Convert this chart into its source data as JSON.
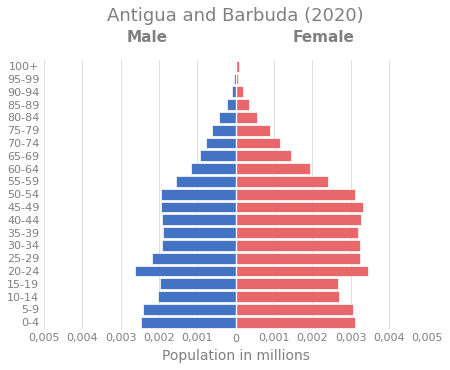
{
  "title": "Antigua and Barbuda (2020)",
  "xlabel": "Population in millions",
  "male_label": "Male",
  "female_label": "Female",
  "age_groups": [
    "0-4",
    "5-9",
    "10-14",
    "15-19",
    "20-24",
    "25-29",
    "30-34",
    "35-39",
    "40-44",
    "45-49",
    "50-54",
    "55-59",
    "60-64",
    "65-69",
    "70-74",
    "75-79",
    "80-84",
    "85-89",
    "90-94",
    "95-99",
    "100+"
  ],
  "male_values": [
    0.00248,
    0.00243,
    0.00202,
    0.00197,
    0.00262,
    0.00218,
    0.00192,
    0.00189,
    0.00192,
    0.00194,
    0.00195,
    0.00155,
    0.00118,
    0.00093,
    0.00078,
    0.00063,
    0.00044,
    0.00024,
    0.00011,
    4e-05,
    1e-05
  ],
  "female_values": [
    0.0031,
    0.00305,
    0.0027,
    0.00268,
    0.00345,
    0.00325,
    0.00325,
    0.0032,
    0.00328,
    0.00332,
    0.0031,
    0.0024,
    0.00195,
    0.00145,
    0.00115,
    0.0009,
    0.00055,
    0.00035,
    0.00018,
    5e-05,
    8e-05
  ],
  "male_color": "#4472C4",
  "female_color": "#E8676B",
  "xlim": 0.005,
  "background_color": "#ffffff",
  "title_fontsize": 13,
  "label_fontsize": 10,
  "tick_fontsize": 8,
  "xticks": [
    -0.005,
    -0.004,
    -0.003,
    -0.002,
    -0.001,
    0,
    0.001,
    0.002,
    0.003,
    0.004,
    0.005
  ],
  "xticklabels": [
    "0,005",
    "0,004",
    "0,003",
    "0,002",
    "0,001",
    "0",
    "0,001",
    "0,002",
    "0,003",
    "0,004",
    "0,005"
  ]
}
